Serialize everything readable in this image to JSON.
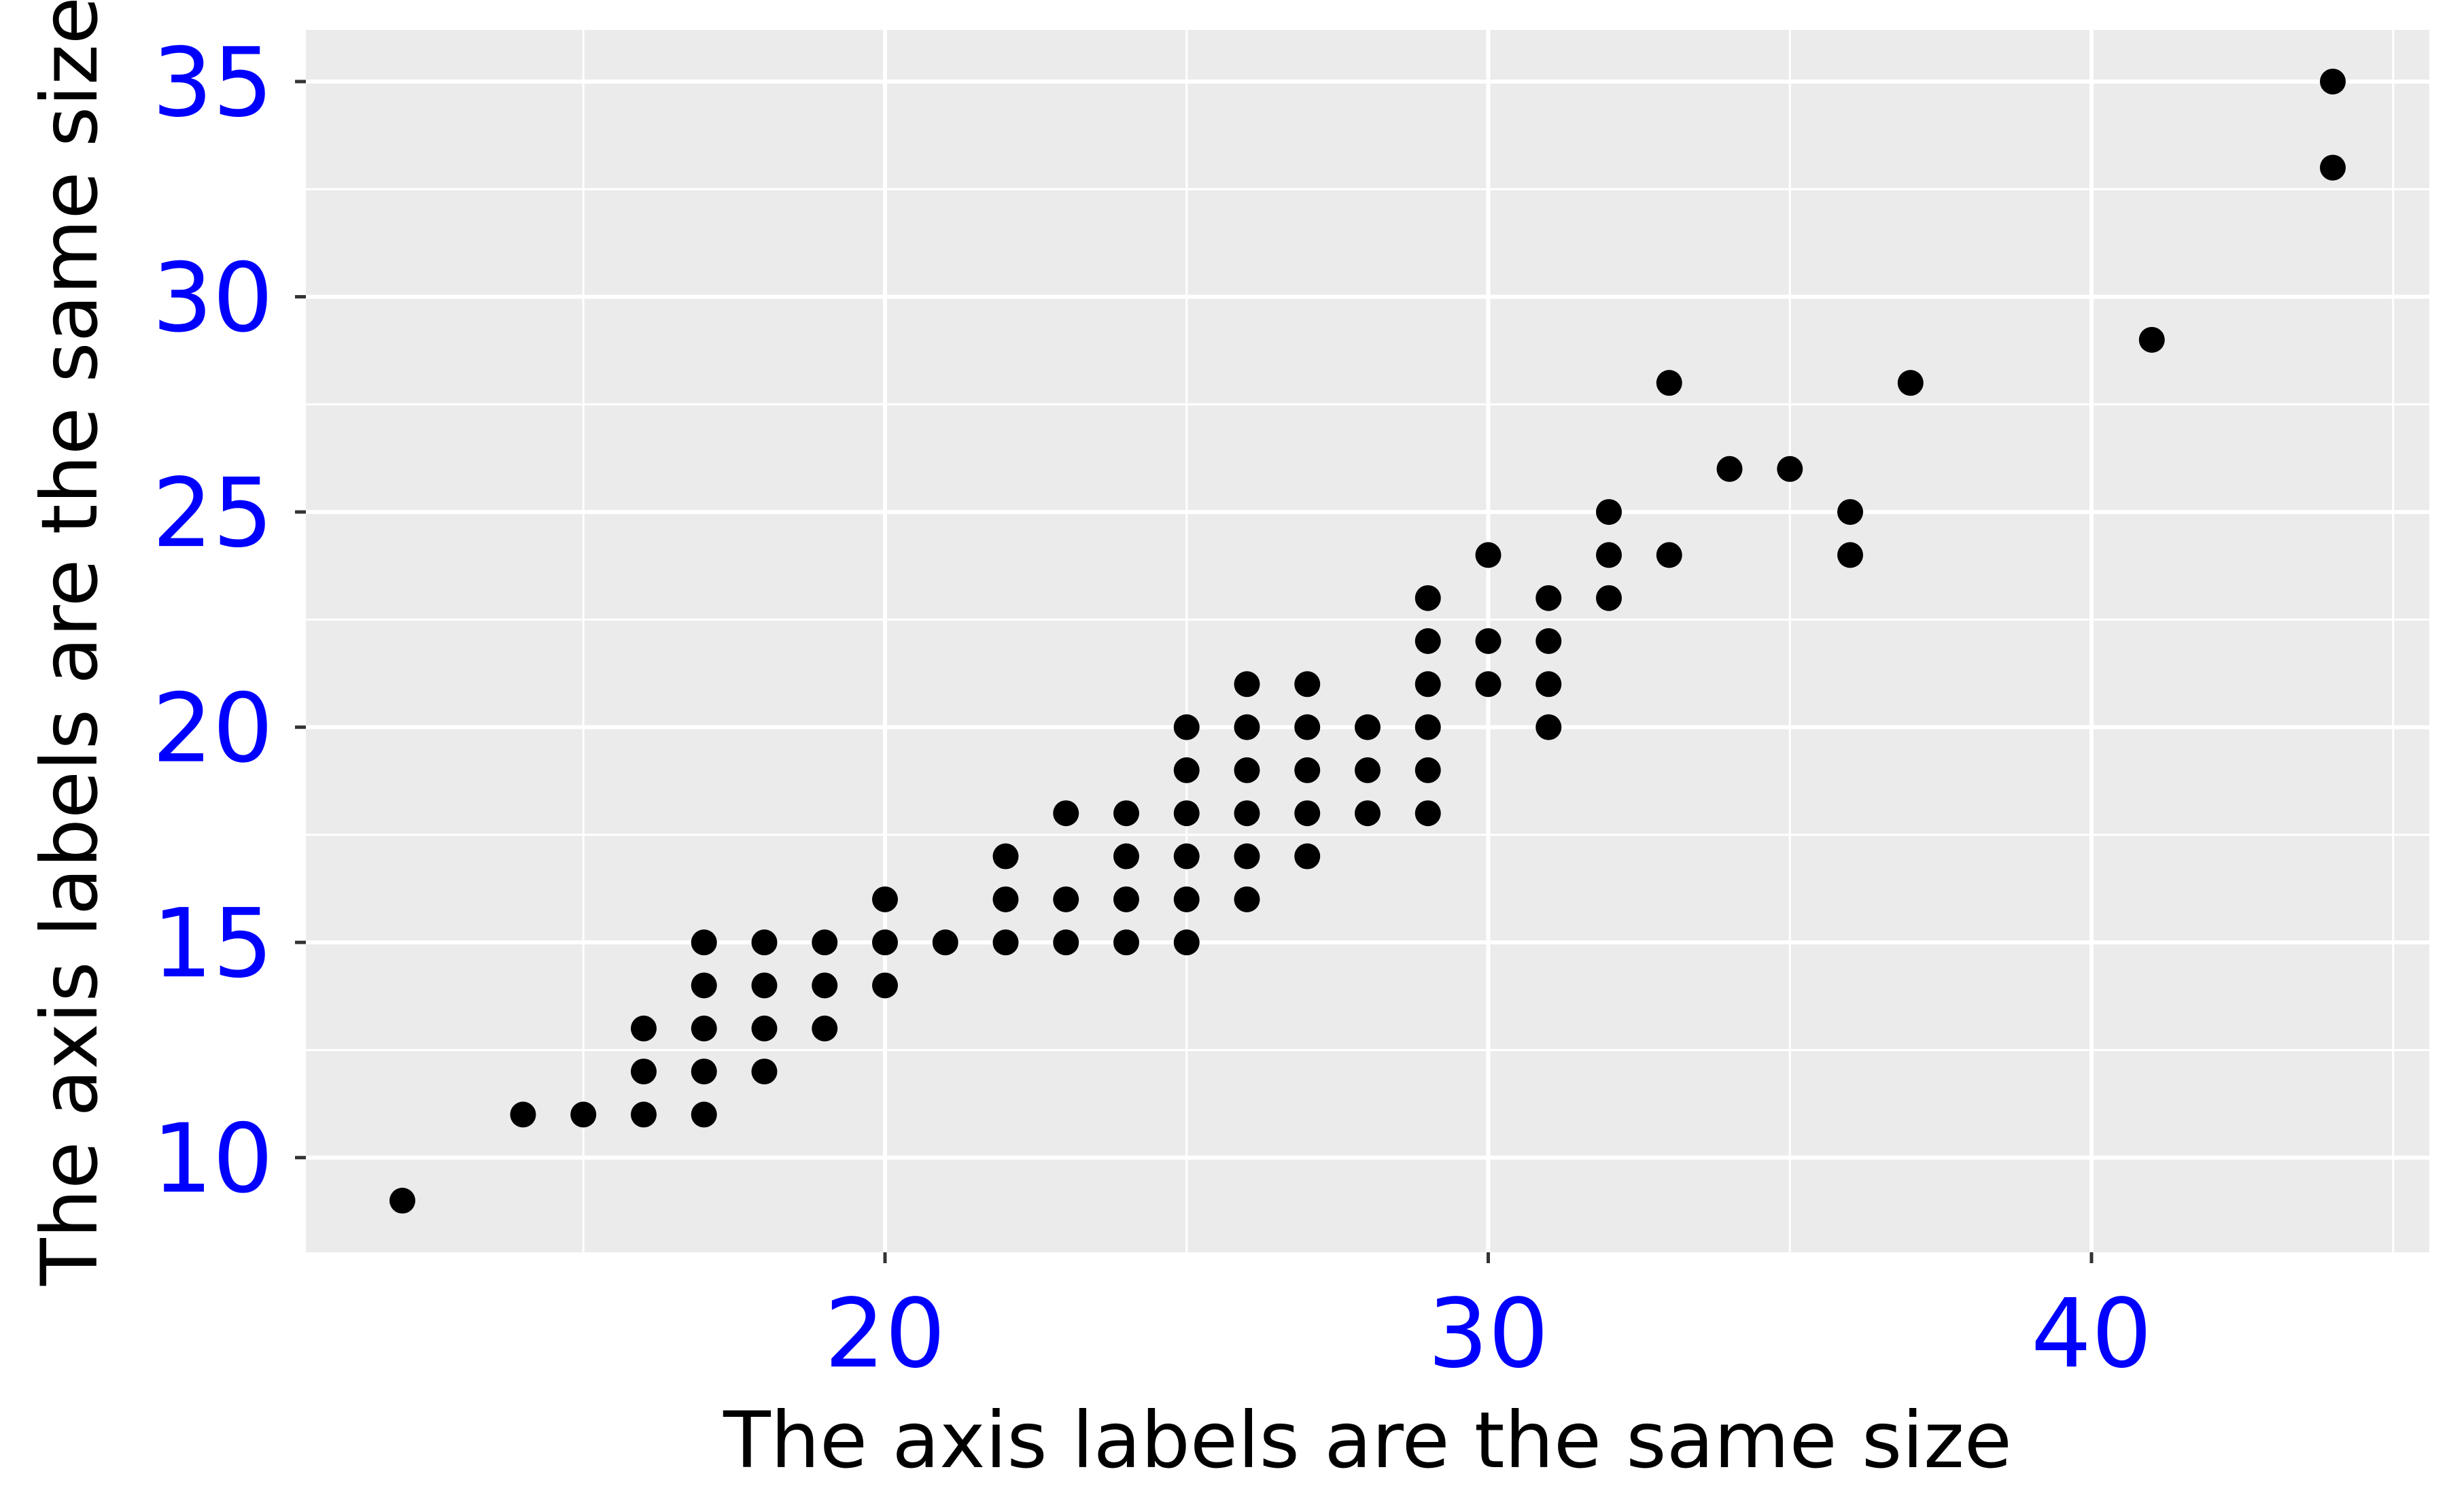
{
  "chart_data": {
    "type": "scatter",
    "xlabel": "The axis labels are the same size",
    "ylabel": "The axis labels are the same size",
    "xlim": [
      10.4,
      45.6
    ],
    "ylim": [
      7.8,
      36.2
    ],
    "x_ticks": [
      20,
      30,
      40
    ],
    "y_ticks": [
      10,
      15,
      20,
      25,
      30,
      35
    ],
    "x_minor_ticks": [
      15,
      25,
      35,
      45
    ],
    "y_minor_ticks": [
      12.5,
      17.5,
      22.5,
      27.5,
      32.5
    ],
    "grid": true,
    "colors": {
      "panel_background": "#EBEBEB",
      "gridline": "#FFFFFF",
      "points": "#000000",
      "tick_labels": "#0000FF",
      "axis_titles": "#000000"
    },
    "points": [
      {
        "x": 12,
        "y": 9
      },
      {
        "x": 14,
        "y": 11
      },
      {
        "x": 15,
        "y": 11
      },
      {
        "x": 16,
        "y": 11
      },
      {
        "x": 16,
        "y": 12
      },
      {
        "x": 16,
        "y": 13
      },
      {
        "x": 17,
        "y": 11
      },
      {
        "x": 17,
        "y": 12
      },
      {
        "x": 17,
        "y": 13
      },
      {
        "x": 17,
        "y": 14
      },
      {
        "x": 17,
        "y": 15
      },
      {
        "x": 18,
        "y": 12
      },
      {
        "x": 18,
        "y": 13
      },
      {
        "x": 18,
        "y": 14
      },
      {
        "x": 18,
        "y": 15
      },
      {
        "x": 19,
        "y": 13
      },
      {
        "x": 19,
        "y": 14
      },
      {
        "x": 19,
        "y": 15
      },
      {
        "x": 20,
        "y": 14
      },
      {
        "x": 20,
        "y": 15
      },
      {
        "x": 20,
        "y": 16
      },
      {
        "x": 21,
        "y": 15
      },
      {
        "x": 22,
        "y": 15
      },
      {
        "x": 22,
        "y": 16
      },
      {
        "x": 22,
        "y": 17
      },
      {
        "x": 23,
        "y": 15
      },
      {
        "x": 23,
        "y": 16
      },
      {
        "x": 23,
        "y": 18
      },
      {
        "x": 24,
        "y": 15
      },
      {
        "x": 24,
        "y": 16
      },
      {
        "x": 24,
        "y": 17
      },
      {
        "x": 24,
        "y": 18
      },
      {
        "x": 25,
        "y": 15
      },
      {
        "x": 25,
        "y": 16
      },
      {
        "x": 25,
        "y": 17
      },
      {
        "x": 25,
        "y": 18
      },
      {
        "x": 25,
        "y": 19
      },
      {
        "x": 25,
        "y": 20
      },
      {
        "x": 26,
        "y": 16
      },
      {
        "x": 26,
        "y": 17
      },
      {
        "x": 26,
        "y": 18
      },
      {
        "x": 26,
        "y": 19
      },
      {
        "x": 26,
        "y": 20
      },
      {
        "x": 26,
        "y": 21
      },
      {
        "x": 27,
        "y": 17
      },
      {
        "x": 27,
        "y": 18
      },
      {
        "x": 27,
        "y": 19
      },
      {
        "x": 27,
        "y": 20
      },
      {
        "x": 27,
        "y": 21
      },
      {
        "x": 28,
        "y": 18
      },
      {
        "x": 28,
        "y": 19
      },
      {
        "x": 28,
        "y": 20
      },
      {
        "x": 29,
        "y": 18
      },
      {
        "x": 29,
        "y": 19
      },
      {
        "x": 29,
        "y": 20
      },
      {
        "x": 29,
        "y": 21
      },
      {
        "x": 29,
        "y": 22
      },
      {
        "x": 29,
        "y": 23
      },
      {
        "x": 30,
        "y": 21
      },
      {
        "x": 30,
        "y": 22
      },
      {
        "x": 30,
        "y": 24
      },
      {
        "x": 31,
        "y": 20
      },
      {
        "x": 31,
        "y": 21
      },
      {
        "x": 31,
        "y": 22
      },
      {
        "x": 31,
        "y": 23
      },
      {
        "x": 32,
        "y": 23
      },
      {
        "x": 32,
        "y": 24
      },
      {
        "x": 32,
        "y": 25
      },
      {
        "x": 33,
        "y": 24
      },
      {
        "x": 33,
        "y": 28
      },
      {
        "x": 34,
        "y": 26
      },
      {
        "x": 35,
        "y": 26
      },
      {
        "x": 36,
        "y": 24
      },
      {
        "x": 36,
        "y": 25
      },
      {
        "x": 37,
        "y": 28
      },
      {
        "x": 41,
        "y": 29
      },
      {
        "x": 44,
        "y": 33
      },
      {
        "x": 44,
        "y": 35
      }
    ]
  }
}
